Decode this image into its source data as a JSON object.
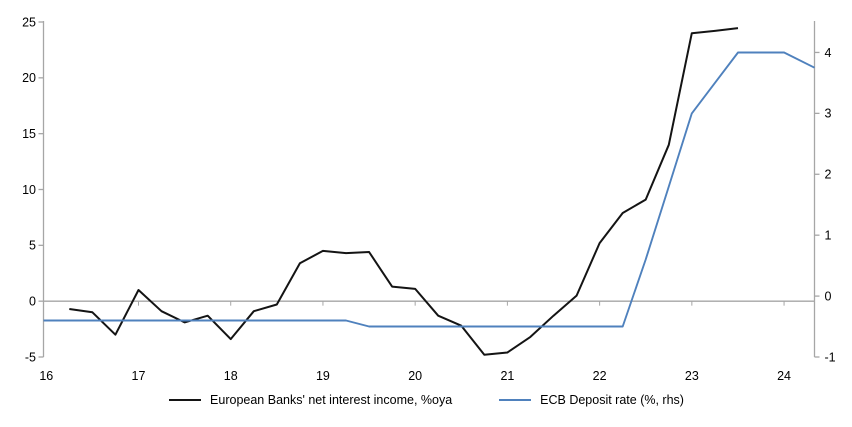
{
  "chart_data": {
    "type": "line",
    "title": "",
    "grid": false,
    "zero_line": true,
    "legend_position": "bottom",
    "x_axis": {
      "tick_labels": [
        "16",
        "17",
        "18",
        "19",
        "20",
        "21",
        "22",
        "23",
        "24"
      ],
      "tick_values": [
        16,
        17,
        18,
        19,
        20,
        21,
        22,
        23,
        24
      ],
      "range": [
        15.97,
        24.33
      ]
    },
    "y_axis_left": {
      "tick_labels": [
        "-5",
        "0",
        "5",
        "10",
        "15",
        "20",
        "25"
      ],
      "tick_values": [
        -5,
        0,
        5,
        10,
        15,
        20,
        25
      ],
      "range": [
        -5,
        25
      ]
    },
    "y_axis_right": {
      "tick_labels": [
        "-1",
        "0",
        "1",
        "2",
        "3",
        "4"
      ],
      "tick_values": [
        -1,
        0,
        1,
        2,
        3,
        4
      ],
      "range": [
        -1,
        4.5
      ]
    },
    "series": [
      {
        "name": "European Banks' net interest income, %oya",
        "axis": "left",
        "color": "#141414",
        "stroke_width": 2,
        "x": [
          16.25,
          16.5,
          16.75,
          17.0,
          17.25,
          17.5,
          17.75,
          18.0,
          18.25,
          18.5,
          18.75,
          19.0,
          19.25,
          19.5,
          19.75,
          20.0,
          20.25,
          20.5,
          20.75,
          21.0,
          21.25,
          21.5,
          21.75,
          22.0,
          22.25,
          22.5,
          22.75,
          23.0,
          23.25,
          23.5
        ],
        "values": [
          -0.7,
          -1.0,
          -3.0,
          1.0,
          -0.9,
          -1.9,
          -1.3,
          -3.4,
          -0.9,
          -0.3,
          3.4,
          4.5,
          4.3,
          4.4,
          1.3,
          1.1,
          -1.3,
          -2.2,
          -4.8,
          -4.6,
          -3.2,
          -1.3,
          0.5,
          5.2,
          7.9,
          9.1,
          14.0,
          24.0,
          24.2,
          24.45
        ]
      },
      {
        "name": "ECB Deposit rate (%, rhs)",
        "axis": "right",
        "color": "#4f81bd",
        "stroke_width": 1.9,
        "x": [
          15.97,
          16.25,
          16.5,
          16.75,
          17.0,
          17.25,
          17.5,
          17.75,
          18.0,
          18.25,
          18.5,
          18.75,
          19.0,
          19.25,
          19.5,
          19.75,
          20.0,
          20.25,
          20.5,
          20.75,
          21.0,
          21.25,
          21.5,
          21.75,
          22.0,
          22.25,
          22.5,
          22.75,
          23.0,
          23.25,
          23.5,
          23.75,
          24.0,
          24.33
        ],
        "values": [
          -0.4,
          -0.4,
          -0.4,
          -0.4,
          -0.4,
          -0.4,
          -0.4,
          -0.4,
          -0.4,
          -0.4,
          -0.4,
          -0.4,
          -0.4,
          -0.4,
          -0.5,
          -0.5,
          -0.5,
          -0.5,
          -0.5,
          -0.5,
          -0.5,
          -0.5,
          -0.5,
          -0.5,
          -0.5,
          -0.5,
          0.6,
          1.8,
          3.0,
          3.5,
          4.0,
          4.0,
          4.0,
          3.75
        ]
      }
    ]
  },
  "legend": {
    "items": [
      {
        "label": "European Banks' net interest income, %oya",
        "color": "#141414"
      },
      {
        "label": "ECB Deposit rate (%, rhs)",
        "color": "#4f81bd"
      }
    ]
  },
  "colors": {
    "axis": "#a6a6a6",
    "zero_line": "#a6a6a6",
    "text": "#000000",
    "background": "#ffffff"
  }
}
